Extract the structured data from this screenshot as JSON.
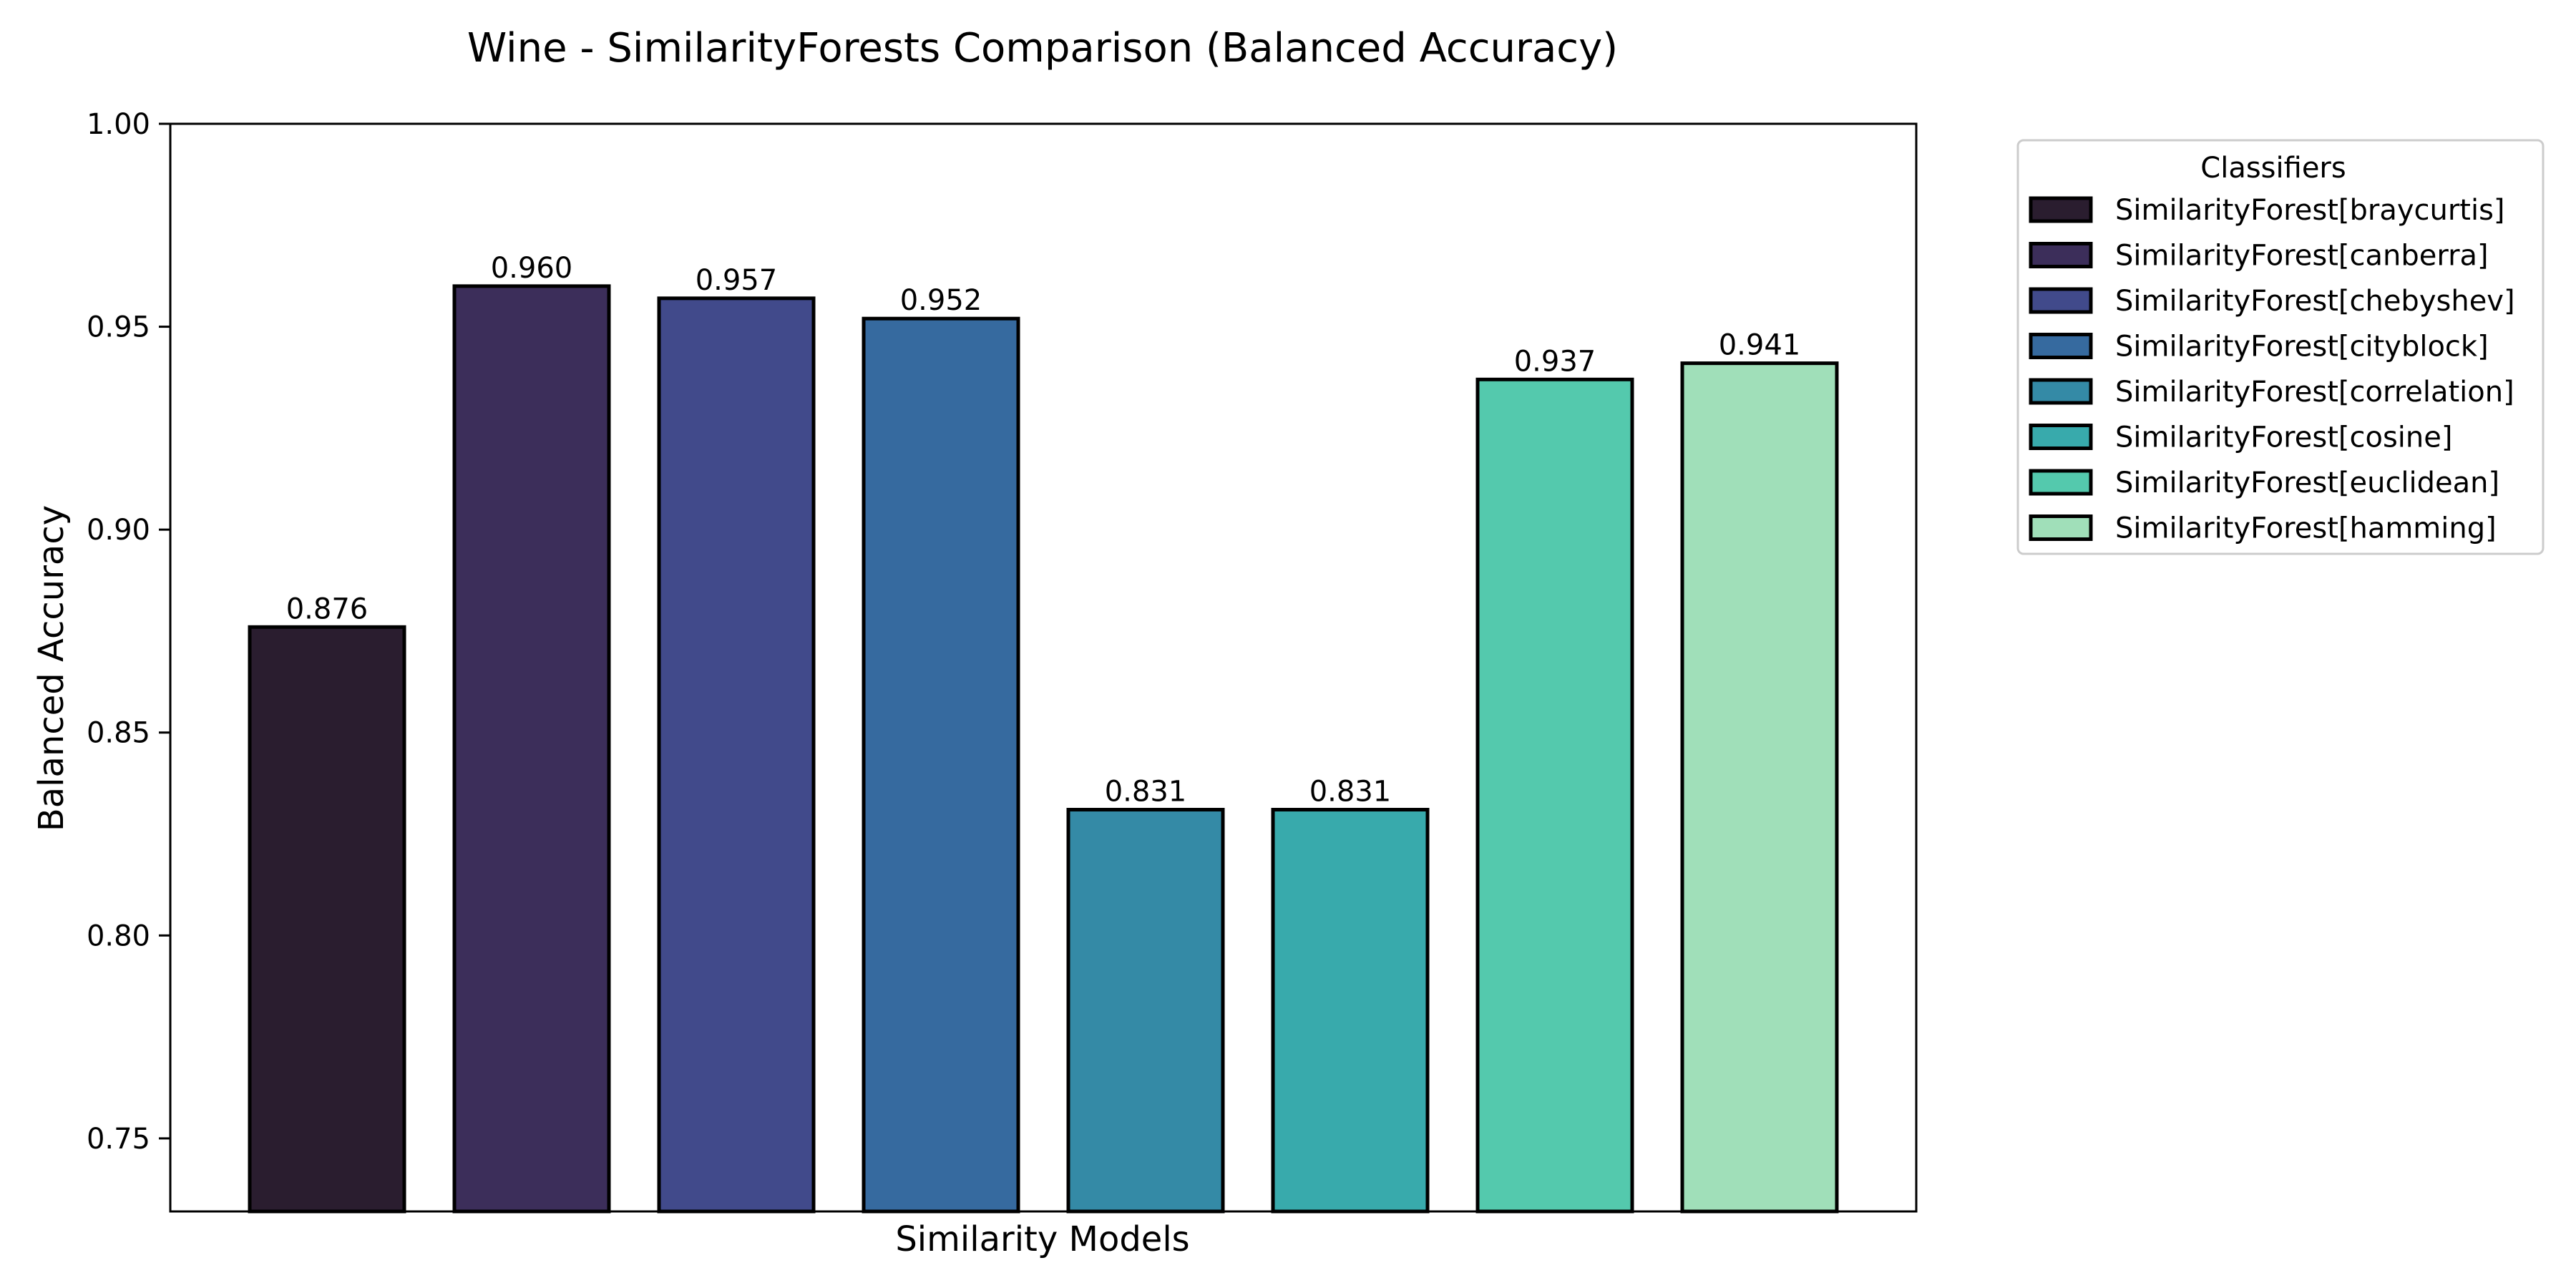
{
  "chart_data": {
    "type": "bar",
    "title": "Wine - SimilarityForests Comparison (Balanced Accuracy)",
    "xlabel": "Similarity Models",
    "ylabel": "Balanced Accuracy",
    "ylim": [
      0.732,
      1.0
    ],
    "yticks": [
      0.75,
      0.8,
      0.85,
      0.9,
      0.95,
      1.0
    ],
    "ytick_labels": [
      "0.75",
      "0.80",
      "0.85",
      "0.90",
      "0.95",
      "1.00"
    ],
    "grid": false,
    "legend": {
      "title": "Classifiers",
      "placement": "outside-top-right"
    },
    "categories": [
      "SimilarityForest[braycurtis]",
      "SimilarityForest[canberra]",
      "SimilarityForest[chebyshev]",
      "SimilarityForest[cityblock]",
      "SimilarityForest[correlation]",
      "SimilarityForest[cosine]",
      "SimilarityForest[euclidean]",
      "SimilarityForest[hamming]"
    ],
    "values": [
      0.876,
      0.96,
      0.957,
      0.952,
      0.831,
      0.831,
      0.937,
      0.941
    ],
    "value_labels": [
      "0.876",
      "0.960",
      "0.957",
      "0.952",
      "0.831",
      "0.831",
      "0.937",
      "0.941"
    ],
    "colors": [
      "#2a1d2f",
      "#3c2e5a",
      "#414a8b",
      "#366a9f",
      "#348aa6",
      "#38aaac",
      "#54c9ad",
      "#a0dfb9"
    ],
    "edge_color": "#000000"
  }
}
